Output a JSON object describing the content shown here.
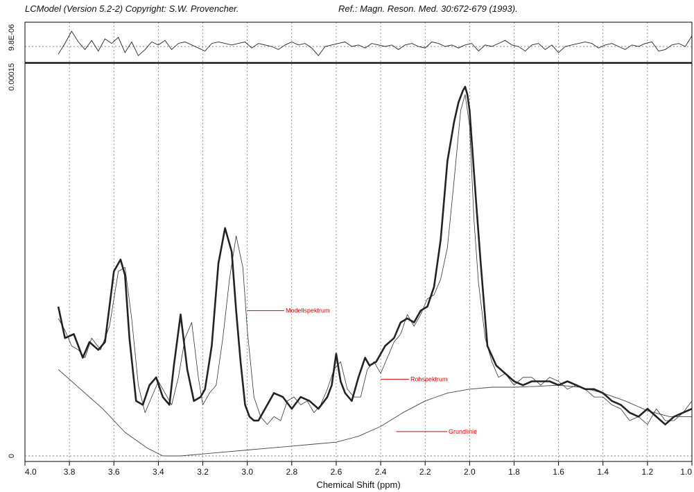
{
  "header": {
    "left": "LCModel (Version 5.2-2) Copyright: S.W. Provencher.",
    "right": "Ref.: Magn. Reson. Med. 30:672-679 (1993)."
  },
  "chart_data": {
    "type": "line",
    "xlabel": "Chemical Shift (ppm)",
    "xlim": [
      4.0,
      1.0
    ],
    "x_reversed": true,
    "x_ticks": [
      "4.0",
      "3.8",
      "3.6",
      "3.4",
      "3.2",
      "3.0",
      "2.8",
      "2.6",
      "2.4",
      "2.2",
      "2.0",
      "1.8",
      "1.6",
      "1.4",
      "1.2",
      "1.0"
    ],
    "ylim": [
      0,
      1
    ],
    "y_tick_labels": [
      "0",
      "0.00015"
    ],
    "residual_axis_label": "9.8E-06",
    "grid": "vertical dotted",
    "annotations": [
      "Modellspektrum",
      "Rohspektrum",
      "Grundlinie"
    ],
    "series": [
      {
        "name": "Modellspektrum",
        "x": [
          3.85,
          3.82,
          3.78,
          3.74,
          3.71,
          3.67,
          3.64,
          3.6,
          3.57,
          3.55,
          3.53,
          3.5,
          3.47,
          3.44,
          3.41,
          3.38,
          3.35,
          3.33,
          3.3,
          3.27,
          3.24,
          3.21,
          3.19,
          3.16,
          3.13,
          3.1,
          3.07,
          3.05,
          3.03,
          3.01,
          2.99,
          2.97,
          2.95,
          2.92,
          2.88,
          2.84,
          2.8,
          2.76,
          2.72,
          2.68,
          2.64,
          2.62,
          2.6,
          2.58,
          2.56,
          2.53,
          2.5,
          2.47,
          2.45,
          2.42,
          2.38,
          2.34,
          2.31,
          2.28,
          2.25,
          2.22,
          2.19,
          2.16,
          2.13,
          2.1,
          2.07,
          2.05,
          2.03,
          2.02,
          2.01,
          2.0,
          1.99,
          1.97,
          1.95,
          1.92,
          1.88,
          1.84,
          1.8,
          1.76,
          1.72,
          1.68,
          1.64,
          1.6,
          1.56,
          1.52,
          1.48,
          1.44,
          1.4,
          1.36,
          1.32,
          1.28,
          1.24,
          1.2,
          1.16,
          1.12,
          1.08,
          1.04,
          1.0
        ],
        "y": [
          0.38,
          0.3,
          0.31,
          0.25,
          0.29,
          0.27,
          0.29,
          0.47,
          0.5,
          0.46,
          0.3,
          0.14,
          0.13,
          0.18,
          0.2,
          0.15,
          0.13,
          0.23,
          0.36,
          0.22,
          0.14,
          0.15,
          0.17,
          0.28,
          0.49,
          0.58,
          0.52,
          0.37,
          0.24,
          0.13,
          0.1,
          0.09,
          0.09,
          0.12,
          0.16,
          0.15,
          0.12,
          0.15,
          0.14,
          0.12,
          0.15,
          0.18,
          0.26,
          0.19,
          0.16,
          0.14,
          0.2,
          0.25,
          0.23,
          0.24,
          0.28,
          0.3,
          0.34,
          0.35,
          0.34,
          0.37,
          0.38,
          0.43,
          0.55,
          0.75,
          0.85,
          0.9,
          0.93,
          0.94,
          0.92,
          0.88,
          0.8,
          0.64,
          0.49,
          0.28,
          0.23,
          0.21,
          0.19,
          0.18,
          0.19,
          0.19,
          0.19,
          0.18,
          0.19,
          0.18,
          0.17,
          0.17,
          0.16,
          0.14,
          0.13,
          0.11,
          0.1,
          0.12,
          0.1,
          0.08,
          0.1,
          0.11,
          0.12
        ]
      },
      {
        "name": "Rohspektrum",
        "x": [
          3.85,
          3.82,
          3.79,
          3.76,
          3.73,
          3.7,
          3.66,
          3.62,
          3.58,
          3.55,
          3.52,
          3.49,
          3.46,
          3.43,
          3.4,
          3.37,
          3.34,
          3.31,
          3.28,
          3.25,
          3.22,
          3.2,
          3.17,
          3.14,
          3.11,
          3.08,
          3.05,
          3.02,
          3.0,
          2.97,
          2.94,
          2.91,
          2.88,
          2.85,
          2.82,
          2.79,
          2.76,
          2.73,
          2.7,
          2.67,
          2.64,
          2.61,
          2.58,
          2.55,
          2.52,
          2.49,
          2.46,
          2.43,
          2.4,
          2.37,
          2.34,
          2.31,
          2.28,
          2.25,
          2.22,
          2.19,
          2.16,
          2.13,
          2.1,
          2.07,
          2.04,
          2.02,
          2.0,
          1.98,
          1.96,
          1.93,
          1.9,
          1.87,
          1.84,
          1.8,
          1.76,
          1.72,
          1.68,
          1.64,
          1.6,
          1.56,
          1.52,
          1.48,
          1.44,
          1.4,
          1.36,
          1.32,
          1.28,
          1.24,
          1.2,
          1.16,
          1.12,
          1.08,
          1.04,
          1.0
        ],
        "y": [
          0.35,
          0.32,
          0.28,
          0.27,
          0.25,
          0.3,
          0.27,
          0.33,
          0.47,
          0.48,
          0.35,
          0.18,
          0.11,
          0.15,
          0.19,
          0.16,
          0.13,
          0.2,
          0.3,
          0.34,
          0.2,
          0.13,
          0.16,
          0.18,
          0.3,
          0.45,
          0.56,
          0.48,
          0.32,
          0.15,
          0.1,
          0.08,
          0.1,
          0.09,
          0.14,
          0.15,
          0.13,
          0.14,
          0.11,
          0.13,
          0.17,
          0.22,
          0.24,
          0.17,
          0.15,
          0.15,
          0.22,
          0.24,
          0.21,
          0.25,
          0.29,
          0.31,
          0.36,
          0.33,
          0.36,
          0.4,
          0.41,
          0.45,
          0.53,
          0.7,
          0.88,
          0.92,
          0.84,
          0.6,
          0.44,
          0.3,
          0.24,
          0.2,
          0.21,
          0.18,
          0.2,
          0.2,
          0.18,
          0.2,
          0.19,
          0.17,
          0.18,
          0.17,
          0.15,
          0.15,
          0.13,
          0.12,
          0.09,
          0.1,
          0.08,
          0.12,
          0.09,
          0.09,
          0.11,
          0.14
        ]
      },
      {
        "name": "Grundlinie",
        "x": [
          3.85,
          3.75,
          3.65,
          3.55,
          3.45,
          3.38,
          3.3,
          3.2,
          3.1,
          3.0,
          2.9,
          2.8,
          2.7,
          2.6,
          2.5,
          2.4,
          2.3,
          2.2,
          2.1,
          2.0,
          1.9,
          1.8,
          1.7,
          1.6,
          1.5,
          1.4,
          1.3,
          1.2,
          1.1,
          1.0
        ],
        "y": [
          0.22,
          0.17,
          0.12,
          0.06,
          0.02,
          0.0,
          0.0,
          0.005,
          0.01,
          0.015,
          0.02,
          0.025,
          0.03,
          0.035,
          0.05,
          0.075,
          0.11,
          0.14,
          0.16,
          0.17,
          0.175,
          0.175,
          0.177,
          0.18,
          0.175,
          0.16,
          0.14,
          0.115,
          0.1,
          0.1
        ]
      }
    ],
    "residual": {
      "x": [
        3.85,
        3.82,
        3.79,
        3.76,
        3.73,
        3.7,
        3.67,
        3.64,
        3.61,
        3.58,
        3.55,
        3.52,
        3.49,
        3.46,
        3.43,
        3.4,
        3.37,
        3.34,
        3.31,
        3.28,
        3.25,
        3.22,
        3.19,
        3.16,
        3.13,
        3.1,
        3.07,
        3.04,
        3.01,
        2.98,
        2.95,
        2.92,
        2.89,
        2.86,
        2.83,
        2.8,
        2.77,
        2.74,
        2.71,
        2.68,
        2.65,
        2.62,
        2.59,
        2.56,
        2.53,
        2.5,
        2.47,
        2.44,
        2.41,
        2.38,
        2.35,
        2.32,
        2.29,
        2.26,
        2.23,
        2.2,
        2.17,
        2.14,
        2.11,
        2.08,
        2.05,
        2.02,
        1.99,
        1.96,
        1.93,
        1.9,
        1.87,
        1.84,
        1.81,
        1.78,
        1.75,
        1.72,
        1.69,
        1.66,
        1.63,
        1.6,
        1.57,
        1.54,
        1.51,
        1.48,
        1.45,
        1.42,
        1.39,
        1.36,
        1.33,
        1.3,
        1.27,
        1.24,
        1.21,
        1.18,
        1.15,
        1.12,
        1.09,
        1.06,
        1.03,
        1.0
      ],
      "y": [
        -0.5,
        0.2,
        1.0,
        0.3,
        -0.2,
        0.4,
        -0.3,
        0.5,
        0.2,
        0.6,
        -0.4,
        0.3,
        -0.6,
        -0.2,
        0.3,
        0.1,
        0.4,
        -0.2,
        0.2,
        0.3,
        0.1,
        -0.1,
        -0.3,
        0.2,
        0.3,
        0.2,
        0.1,
        0.2,
        0.3,
        -0.1,
        0.2,
        0.1,
        0.0,
        -0.2,
        0.1,
        0.3,
        0.1,
        0.2,
        -0.1,
        -0.6,
        0.0,
        0.1,
        0.2,
        0.3,
        0.0,
        0.1,
        -0.1,
        0.2,
        0.1,
        0.0,
        0.1,
        -0.2,
        0.1,
        0.2,
        0.0,
        -0.1,
        0.3,
        0.2,
        0.0,
        0.1,
        -0.1,
        0.1,
        0.2,
        -0.3,
        0.1,
        0.0,
        0.2,
        0.4,
        0.1,
        0.0,
        -0.3,
        0.1,
        0.2,
        -0.2,
        0.1,
        -0.4,
        0.0,
        0.1,
        0.2,
        0.3,
        0.2,
        -0.1,
        0.1,
        0.2,
        0.0,
        -0.2,
        0.1,
        0.0,
        0.2,
        0.3,
        -0.3,
        -0.2,
        0.1,
        0.2,
        0.0,
        0.7
      ]
    }
  }
}
